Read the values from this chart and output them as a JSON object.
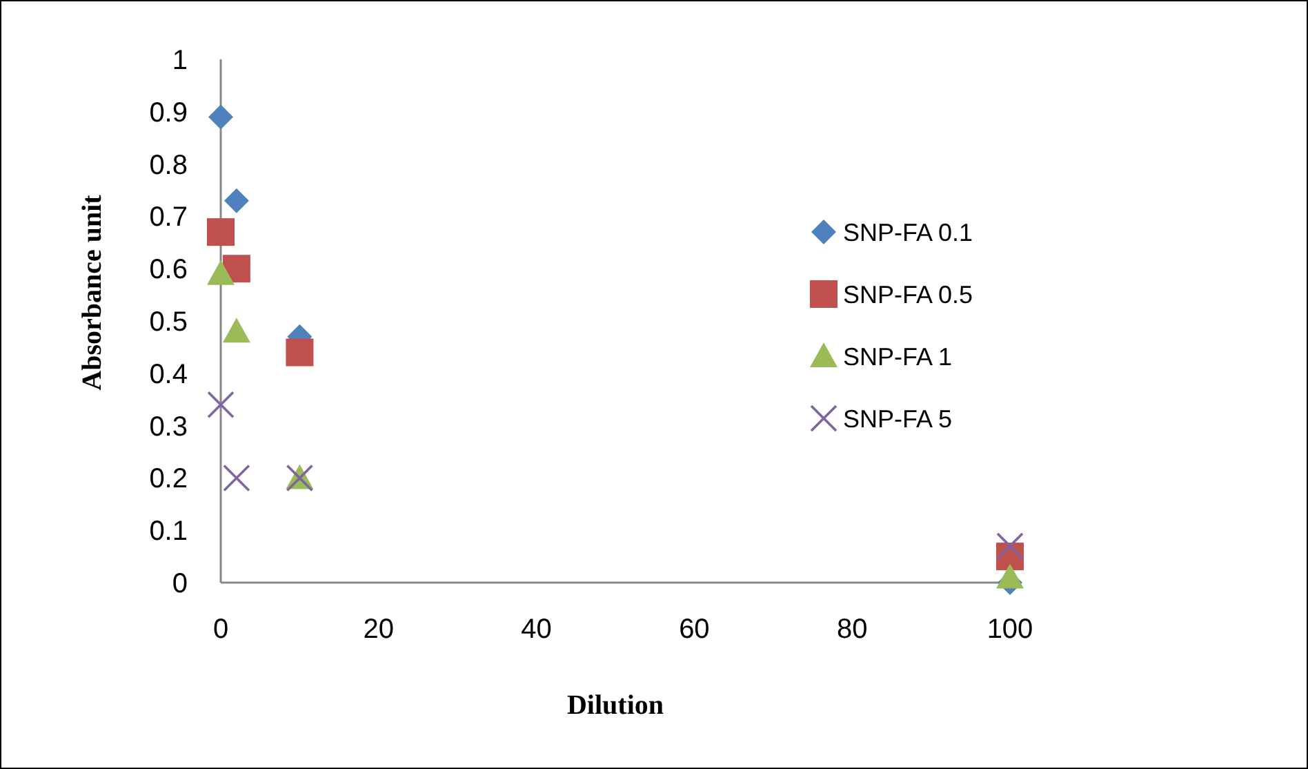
{
  "chart_data": {
    "type": "scatter",
    "xlabel": "Dilution",
    "ylabel": "Absorbance unit",
    "x": [
      0,
      2,
      10,
      100
    ],
    "series": [
      {
        "name": "SNP-FA 0.1",
        "color": "#4f81bd",
        "marker": "diamond",
        "values": [
          0.89,
          0.73,
          0.47,
          0
        ]
      },
      {
        "name": "SNP-FA 0.5",
        "color": "#c0504d",
        "marker": "square",
        "values": [
          0.67,
          0.6,
          0.44,
          0.05
        ]
      },
      {
        "name": "SNP-FA 1",
        "color": "#9bbb59",
        "marker": "triangle",
        "values": [
          0.59,
          0.48,
          0.2,
          0.01
        ]
      },
      {
        "name": "SNP-FA 5",
        "color": "#8064a2",
        "marker": "cross",
        "values": [
          0.34,
          0.2,
          0.2,
          0.07
        ]
      }
    ],
    "xlim": [
      0,
      100
    ],
    "xticks": [
      0,
      20,
      40,
      60,
      80,
      100
    ],
    "ylim": [
      0,
      1
    ],
    "yticks": [
      0,
      0.1,
      0.2,
      0.3,
      0.4,
      0.5,
      0.6,
      0.7,
      0.8,
      0.9,
      1
    ],
    "grid": false,
    "legend": "right"
  }
}
